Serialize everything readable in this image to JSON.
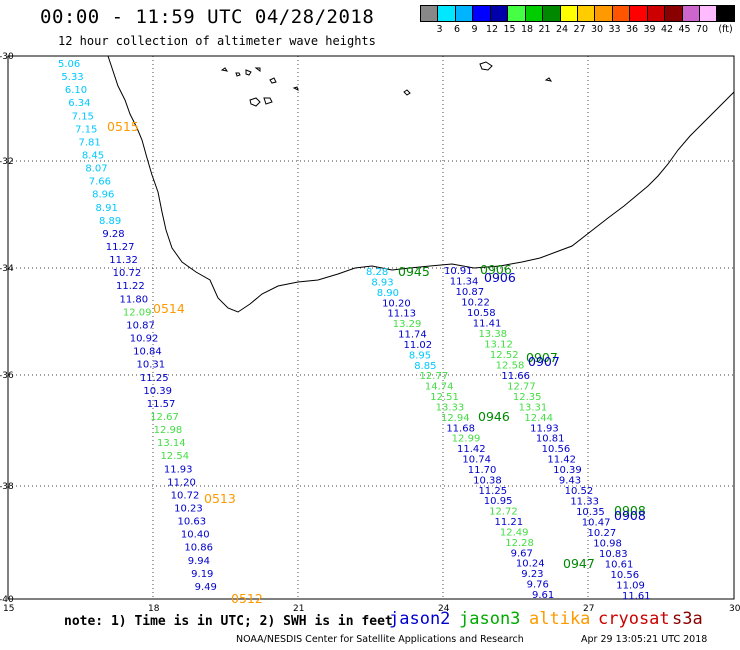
{
  "header": {
    "title": "00:00 - 11:59 UTC 04/28/2018",
    "subtitle": "12 hour collection of altimeter wave heights"
  },
  "legend": {
    "unit": "(ft)",
    "colors": [
      "#888888",
      "#00e8ff",
      "#00b4ff",
      "#0000ff",
      "#0000aa",
      "#44ff44",
      "#00cc00",
      "#008800",
      "#ffff00",
      "#ffcc00",
      "#ff9900",
      "#ff5500",
      "#ff0000",
      "#cc0000",
      "#880000",
      "#cc66cc",
      "#ffbbff",
      "#000000"
    ],
    "labels": [
      "3",
      "6",
      "9",
      "12",
      "15",
      "18",
      "21",
      "24",
      "27",
      "30",
      "33",
      "36",
      "39",
      "42",
      "45",
      "70"
    ]
  },
  "axes": {
    "lat_labels": [
      "-30",
      "-32",
      "-34",
      "-36",
      "-38",
      "-40"
    ],
    "lon_labels": [
      "15",
      "18",
      "21",
      "24",
      "27",
      "30"
    ]
  },
  "tracks": [
    {
      "time": "0515",
      "color": "#ff9900",
      "values": [
        {
          "v": "5.06",
          "c": "#00c8ff"
        },
        {
          "v": "5.33",
          "c": "#00c8ff"
        },
        {
          "v": "6.10",
          "c": "#00c8ff"
        },
        {
          "v": "6.34",
          "c": "#00c8ff"
        },
        {
          "v": "7.15",
          "c": "#00c8ff"
        },
        {
          "v": "7.15",
          "c": "#00c8ff"
        },
        {
          "v": "7.81",
          "c": "#00c8ff"
        },
        {
          "v": "8.45",
          "c": "#00c8ff"
        },
        {
          "v": "8.07",
          "c": "#00c8ff"
        },
        {
          "v": "7.66",
          "c": "#00c8ff"
        },
        {
          "v": "8.96",
          "c": "#00c8ff"
        },
        {
          "v": "8.91",
          "c": "#00c8ff"
        },
        {
          "v": "8.89",
          "c": "#00c8ff"
        },
        {
          "v": "9.28",
          "c": "#0000cc"
        },
        {
          "v": "11.27",
          "c": "#0000cc"
        },
        {
          "v": "11.32",
          "c": "#0000cc"
        },
        {
          "v": "10.72",
          "c": "#0000cc"
        },
        {
          "v": "11.22",
          "c": "#0000cc"
        },
        {
          "v": "11.80",
          "c": "#0000cc"
        }
      ]
    },
    {
      "time": "0514",
      "color": "#ff9900",
      "values": [
        {
          "v": "12.09",
          "c": "#44dd44"
        },
        {
          "v": "10.87",
          "c": "#0000cc"
        },
        {
          "v": "10.92",
          "c": "#0000cc"
        },
        {
          "v": "10.84",
          "c": "#0000cc"
        },
        {
          "v": "10.31",
          "c": "#0000cc"
        },
        {
          "v": "11.25",
          "c": "#0000cc"
        },
        {
          "v": "10.39",
          "c": "#0000cc"
        },
        {
          "v": "11.57",
          "c": "#0000cc"
        },
        {
          "v": "12.67",
          "c": "#44dd44"
        },
        {
          "v": "12.98",
          "c": "#44dd44"
        },
        {
          "v": "13.14",
          "c": "#44dd44"
        },
        {
          "v": "12.54",
          "c": "#44dd44"
        },
        {
          "v": "11.93",
          "c": "#0000cc"
        },
        {
          "v": "11.20",
          "c": "#0000cc"
        }
      ]
    },
    {
      "time": "0513",
      "color": "#ff9900",
      "values": [
        {
          "v": "10.72",
          "c": "#0000cc"
        },
        {
          "v": "10.23",
          "c": "#0000cc"
        },
        {
          "v": "10.63",
          "c": "#0000cc"
        },
        {
          "v": "10.40",
          "c": "#0000cc"
        },
        {
          "v": "10.86",
          "c": "#0000cc"
        },
        {
          "v": "9.94",
          "c": "#0000cc"
        },
        {
          "v": "9.19",
          "c": "#0000cc"
        },
        {
          "v": "9.49",
          "c": "#0000cc"
        }
      ]
    },
    {
      "time": "0512",
      "color": "#ff9900"
    }
  ],
  "track_mid": {
    "labels": [
      {
        "t": "0945",
        "c": "#008800"
      },
      {
        "t": "0946",
        "c": "#008800"
      },
      {
        "t": "0947",
        "c": "#008800"
      }
    ],
    "values": [
      {
        "v": "8.28",
        "c": "#00c8ff"
      },
      {
        "v": "8.93",
        "c": "#00c8ff"
      },
      {
        "v": "8.90",
        "c": "#00c8ff"
      },
      {
        "v": "10.20",
        "c": "#0000cc"
      },
      {
        "v": "11.13",
        "c": "#0000cc"
      },
      {
        "v": "13.29",
        "c": "#44dd44"
      },
      {
        "v": "11.74",
        "c": "#0000cc"
      },
      {
        "v": "11.02",
        "c": "#0000cc"
      },
      {
        "v": "8.95",
        "c": "#00c8ff"
      },
      {
        "v": "8.85",
        "c": "#00c8ff"
      },
      {
        "v": "12.77",
        "c": "#44dd44"
      },
      {
        "v": "14.74",
        "c": "#44dd44"
      },
      {
        "v": "12.51",
        "c": "#44dd44"
      },
      {
        "v": "13.33",
        "c": "#44dd44"
      },
      {
        "v": "12.94",
        "c": "#44dd44"
      },
      {
        "v": "11.68",
        "c": "#0000cc"
      },
      {
        "v": "12.99",
        "c": "#44dd44"
      },
      {
        "v": "11.42",
        "c": "#0000cc"
      },
      {
        "v": "10.74",
        "c": "#0000cc"
      },
      {
        "v": "11.70",
        "c": "#0000cc"
      },
      {
        "v": "10.38",
        "c": "#0000cc"
      },
      {
        "v": "11.25",
        "c": "#0000cc"
      },
      {
        "v": "10.95",
        "c": "#0000cc"
      },
      {
        "v": "12.72",
        "c": "#44dd44"
      },
      {
        "v": "11.21",
        "c": "#0000cc"
      },
      {
        "v": "12.49",
        "c": "#44dd44"
      },
      {
        "v": "12.28",
        "c": "#44dd44"
      },
      {
        "v": "9.67",
        "c": "#0000cc"
      },
      {
        "v": "10.24",
        "c": "#0000cc"
      },
      {
        "v": "9.23",
        "c": "#0000cc"
      },
      {
        "v": "9.76",
        "c": "#0000cc"
      },
      {
        "v": "9.61",
        "c": "#0000cc"
      }
    ]
  },
  "track_east": {
    "labels": [
      {
        "t": "0906",
        "c": "#008800"
      },
      {
        "t": "0906",
        "c": "#0000cc"
      },
      {
        "t": "0907",
        "c": "#008800"
      },
      {
        "t": "0907",
        "c": "#0000cc"
      },
      {
        "t": "0908",
        "c": "#008800"
      },
      {
        "t": "0908",
        "c": "#0000cc"
      }
    ],
    "values": [
      {
        "v": "10.91",
        "c": "#0000cc"
      },
      {
        "v": "11.34",
        "c": "#0000cc"
      },
      {
        "v": "10.87",
        "c": "#0000cc"
      },
      {
        "v": "10.22",
        "c": "#0000cc"
      },
      {
        "v": "10.58",
        "c": "#0000cc"
      },
      {
        "v": "11.41",
        "c": "#0000cc"
      },
      {
        "v": "13.38",
        "c": "#44dd44"
      },
      {
        "v": "13.12",
        "c": "#44dd44"
      },
      {
        "v": "12.52",
        "c": "#44dd44"
      },
      {
        "v": "12.58",
        "c": "#44dd44"
      },
      {
        "v": "11.66",
        "c": "#0000cc"
      },
      {
        "v": "12.77",
        "c": "#44dd44"
      },
      {
        "v": "12.35",
        "c": "#44dd44"
      },
      {
        "v": "13.31",
        "c": "#44dd44"
      },
      {
        "v": "12.44",
        "c": "#44dd44"
      },
      {
        "v": "11.93",
        "c": "#0000cc"
      },
      {
        "v": "10.81",
        "c": "#0000cc"
      },
      {
        "v": "10.56",
        "c": "#0000cc"
      },
      {
        "v": "11.42",
        "c": "#0000cc"
      },
      {
        "v": "10.39",
        "c": "#0000cc"
      },
      {
        "v": "9.43",
        "c": "#0000cc"
      },
      {
        "v": "10.52",
        "c": "#0000cc"
      },
      {
        "v": "11.33",
        "c": "#0000cc"
      },
      {
        "v": "10.35",
        "c": "#0000cc"
      },
      {
        "v": "10.47",
        "c": "#0000cc"
      },
      {
        "v": "10.27",
        "c": "#0000cc"
      },
      {
        "v": "10.98",
        "c": "#0000cc"
      },
      {
        "v": "10.83",
        "c": "#0000cc"
      },
      {
        "v": "10.61",
        "c": "#0000cc"
      },
      {
        "v": "10.56",
        "c": "#0000cc"
      },
      {
        "v": "11.09",
        "c": "#0000cc"
      },
      {
        "v": "11.61",
        "c": "#0000cc"
      }
    ]
  },
  "footer": {
    "note": "note: 1) Time is in UTC; 2) SWH is in feet",
    "satellites": [
      {
        "name": "jason2",
        "color": "#0000cc"
      },
      {
        "name": "jason3",
        "color": "#00aa00"
      },
      {
        "name": "altika",
        "color": "#ff9900"
      },
      {
        "name": "cryosat",
        "color": "#cc0000"
      },
      {
        "name": "s3a",
        "color": "#880000"
      }
    ],
    "credits": "NOAA/NESDIS Center for Satellite Applications and Research",
    "stamp": "Apr 29 13:05:21 UTC 2018"
  }
}
